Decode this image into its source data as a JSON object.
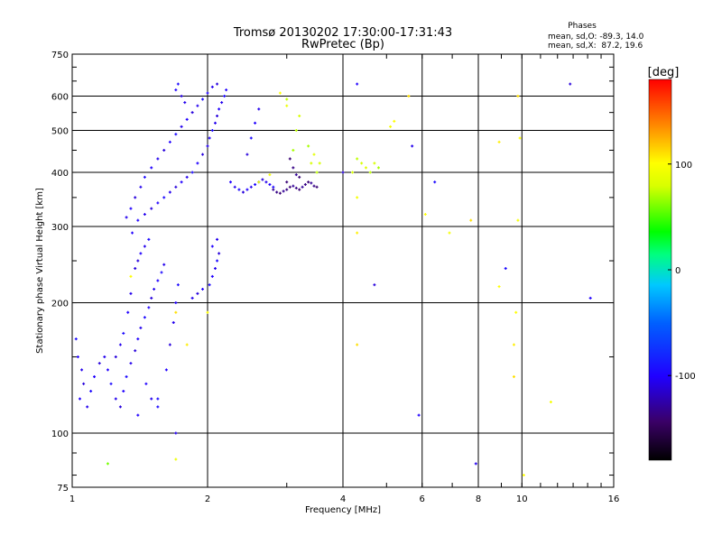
{
  "chart_data": {
    "type": "scatter",
    "title": "Tromsø 20130202 17:30:00-17:31:43",
    "subtitle": "RwPretec (Bp)",
    "xlabel": "Frequency [MHz]",
    "ylabel": "Stationary phase Virtual Height [km]",
    "x_scale": "log",
    "y_scale": "log",
    "xlim": [
      1,
      16
    ],
    "ylim": [
      75,
      750
    ],
    "x_ticks": [
      1,
      2,
      4,
      6,
      8,
      10,
      16
    ],
    "y_ticks": [
      75,
      100,
      200,
      300,
      400,
      500,
      600,
      750
    ],
    "x_gridlines": [
      2,
      4,
      6,
      8,
      10
    ],
    "y_gridlines": [
      100,
      200,
      300,
      400,
      500,
      600
    ],
    "grid": true,
    "phases_box": {
      "title": "Phases",
      "line_o": "mean, sd,O: -89.3, 14.0",
      "line_x": "mean, sd,X:  87.2, 19.6"
    },
    "colorbar": {
      "label": "[deg]",
      "range": [
        -180,
        180
      ],
      "ticks": [
        100,
        0,
        -100
      ],
      "tick_labels": [
        "100",
        "0",
        "-100"
      ]
    },
    "series": [
      {
        "points": [
          [
            1.02,
            165,
            -95
          ],
          [
            1.03,
            150,
            -100
          ],
          [
            1.05,
            140,
            -105
          ],
          [
            1.06,
            130,
            -110
          ],
          [
            1.04,
            120,
            -100
          ],
          [
            1.08,
            115,
            -105
          ],
          [
            1.1,
            125,
            -95
          ],
          [
            1.12,
            135,
            -100
          ],
          [
            1.15,
            145,
            -110
          ],
          [
            1.18,
            150,
            -105
          ],
          [
            1.2,
            140,
            -100
          ],
          [
            1.22,
            130,
            -95
          ],
          [
            1.25,
            120,
            -105
          ],
          [
            1.28,
            115,
            -110
          ],
          [
            1.3,
            125,
            -100
          ],
          [
            1.32,
            135,
            -95
          ],
          [
            1.35,
            145,
            -105
          ],
          [
            1.38,
            155,
            -110
          ],
          [
            1.4,
            165,
            -100
          ],
          [
            1.42,
            175,
            -105
          ],
          [
            1.45,
            185,
            -95
          ],
          [
            1.48,
            195,
            -100
          ],
          [
            1.5,
            205,
            -110
          ],
          [
            1.52,
            215,
            -105
          ],
          [
            1.55,
            225,
            -100
          ],
          [
            1.58,
            235,
            -95
          ],
          [
            1.6,
            245,
            -105
          ],
          [
            1.4,
            250,
            -110
          ],
          [
            1.42,
            260,
            -100
          ],
          [
            1.45,
            270,
            -105
          ],
          [
            1.48,
            280,
            -95
          ],
          [
            1.36,
            290,
            -100
          ],
          [
            1.38,
            240,
            -110
          ],
          [
            1.35,
            210,
            -105
          ],
          [
            1.33,
            190,
            -100
          ],
          [
            1.3,
            170,
            -95
          ],
          [
            1.28,
            160,
            -105
          ],
          [
            1.25,
            150,
            -110
          ],
          [
            1.46,
            130,
            -100
          ],
          [
            1.5,
            120,
            -105
          ],
          [
            1.55,
            115,
            -95
          ],
          [
            1.62,
            140,
            -100
          ],
          [
            1.65,
            160,
            -110
          ],
          [
            1.68,
            180,
            -105
          ],
          [
            1.7,
            200,
            -100
          ],
          [
            1.72,
            220,
            -95
          ],
          [
            1.4,
            310,
            -100
          ],
          [
            1.45,
            320,
            -105
          ],
          [
            1.5,
            330,
            -110
          ],
          [
            1.55,
            340,
            -100
          ],
          [
            1.6,
            350,
            -95
          ],
          [
            1.65,
            360,
            -105
          ],
          [
            1.7,
            370,
            -110
          ],
          [
            1.75,
            380,
            -100
          ],
          [
            1.8,
            390,
            -105
          ],
          [
            1.85,
            400,
            -95
          ],
          [
            1.9,
            420,
            -100
          ],
          [
            1.95,
            440,
            -110
          ],
          [
            2.0,
            460,
            -105
          ],
          [
            2.02,
            480,
            -100
          ],
          [
            2.05,
            500,
            -95
          ],
          [
            2.08,
            520,
            -105
          ],
          [
            2.1,
            540,
            -110
          ],
          [
            2.12,
            560,
            -100
          ],
          [
            2.15,
            580,
            -105
          ],
          [
            2.18,
            600,
            -95
          ],
          [
            2.2,
            620,
            -100
          ],
          [
            2.1,
            640,
            -110
          ],
          [
            2.05,
            630,
            -105
          ],
          [
            2.0,
            610,
            -100
          ],
          [
            1.95,
            590,
            -95
          ],
          [
            1.9,
            570,
            -105
          ],
          [
            1.85,
            550,
            -110
          ],
          [
            1.8,
            530,
            -100
          ],
          [
            1.75,
            510,
            -105
          ],
          [
            1.7,
            490,
            -95
          ],
          [
            1.65,
            470,
            -100
          ],
          [
            1.6,
            450,
            -110
          ],
          [
            1.55,
            430,
            -105
          ],
          [
            1.5,
            410,
            -100
          ],
          [
            1.45,
            390,
            -95
          ],
          [
            1.42,
            370,
            -105
          ],
          [
            1.38,
            350,
            -110
          ],
          [
            1.35,
            330,
            -100
          ],
          [
            1.32,
            315,
            -105
          ],
          [
            1.72,
            640,
            -95
          ],
          [
            1.7,
            620,
            -100
          ],
          [
            1.75,
            600,
            -110
          ],
          [
            1.78,
            580,
            -105
          ],
          [
            2.05,
            230,
            -100
          ],
          [
            2.08,
            240,
            -105
          ],
          [
            2.1,
            250,
            -95
          ],
          [
            2.12,
            260,
            -110
          ],
          [
            2.05,
            270,
            -100
          ],
          [
            2.1,
            280,
            -105
          ],
          [
            2.02,
            220,
            -95
          ],
          [
            1.95,
            215,
            -100
          ],
          [
            1.9,
            210,
            -110
          ],
          [
            1.85,
            205,
            -105
          ],
          [
            2.25,
            380,
            -100
          ],
          [
            2.3,
            370,
            -105
          ],
          [
            2.35,
            365,
            -95
          ],
          [
            2.4,
            360,
            -110
          ],
          [
            2.45,
            365,
            -100
          ],
          [
            2.5,
            370,
            -105
          ],
          [
            2.55,
            375,
            -95
          ],
          [
            2.6,
            380,
            -100
          ],
          [
            2.65,
            385,
            -110
          ],
          [
            2.7,
            380,
            -105
          ],
          [
            2.75,
            375,
            -100
          ],
          [
            2.8,
            370,
            -95
          ],
          [
            2.8,
            365,
            -130
          ],
          [
            2.85,
            360,
            -135
          ],
          [
            2.9,
            358,
            -140
          ],
          [
            2.95,
            362,
            -130
          ],
          [
            3.0,
            365,
            -135
          ],
          [
            3.05,
            370,
            -140
          ],
          [
            3.1,
            372,
            -130
          ],
          [
            3.15,
            368,
            -135
          ],
          [
            3.2,
            365,
            -140
          ],
          [
            3.25,
            370,
            -130
          ],
          [
            3.3,
            375,
            -135
          ],
          [
            3.35,
            380,
            -140
          ],
          [
            3.4,
            378,
            -130
          ],
          [
            3.45,
            372,
            -135
          ],
          [
            3.5,
            370,
            -140
          ],
          [
            2.55,
            520,
            -100
          ],
          [
            2.6,
            560,
            -105
          ],
          [
            2.5,
            480,
            -95
          ],
          [
            2.45,
            440,
            -110
          ],
          [
            3.05,
            430,
            -140
          ],
          [
            3.1,
            410,
            -135
          ],
          [
            3.15,
            395,
            -130
          ],
          [
            3.2,
            390,
            -140
          ],
          [
            4.3,
            640,
            -100
          ],
          [
            5.7,
            460,
            -105
          ],
          [
            6.4,
            380,
            -95
          ],
          [
            4.7,
            220,
            -110
          ],
          [
            5.9,
            110,
            -100
          ],
          [
            7.9,
            85,
            -105
          ],
          [
            9.2,
            240,
            -95
          ],
          [
            12.8,
            640,
            -110
          ],
          [
            14.2,
            205,
            -100
          ],
          [
            1.7,
            100,
            -105
          ],
          [
            1.55,
            120,
            -95
          ],
          [
            1.4,
            110,
            -100
          ],
          [
            3.0,
            380,
            -140
          ],
          [
            4.0,
            400,
            -110
          ]
        ]
      },
      {
        "points": [
          [
            3.1,
            450,
            70
          ],
          [
            3.15,
            500,
            75
          ],
          [
            3.2,
            540,
            80
          ],
          [
            3.0,
            590,
            75
          ],
          [
            3.4,
            420,
            80
          ],
          [
            3.45,
            440,
            85
          ],
          [
            3.5,
            400,
            75
          ],
          [
            3.55,
            420,
            80
          ],
          [
            3.35,
            460,
            70
          ],
          [
            4.4,
            420,
            80
          ],
          [
            4.5,
            410,
            85
          ],
          [
            4.6,
            400,
            75
          ],
          [
            4.7,
            420,
            80
          ],
          [
            4.8,
            410,
            70
          ],
          [
            4.3,
            430,
            75
          ],
          [
            4.2,
            400,
            80
          ],
          [
            2.6,
            380,
            90
          ],
          [
            2.75,
            395,
            95
          ],
          [
            2.9,
            610,
            100
          ],
          [
            3.0,
            570,
            90
          ],
          [
            5.1,
            510,
            95
          ],
          [
            5.2,
            525,
            100
          ],
          [
            5.6,
            600,
            110
          ],
          [
            6.1,
            320,
            100
          ],
          [
            6.9,
            290,
            95
          ],
          [
            7.7,
            310,
            110
          ],
          [
            8.9,
            470,
            105
          ],
          [
            9.9,
            480,
            100
          ],
          [
            9.8,
            600,
            110
          ],
          [
            9.8,
            310,
            95
          ],
          [
            9.7,
            190,
            100
          ],
          [
            9.6,
            160,
            105
          ],
          [
            9.6,
            135,
            110
          ],
          [
            10.1,
            80,
            100
          ],
          [
            11.6,
            118,
            95
          ],
          [
            8.9,
            218,
            100
          ],
          [
            4.3,
            290,
            105
          ],
          [
            4.3,
            160,
            110
          ],
          [
            4.3,
            350,
            95
          ],
          [
            1.35,
            230,
            100
          ],
          [
            1.7,
            190,
            110
          ],
          [
            1.8,
            160,
            105
          ],
          [
            2.0,
            190,
            100
          ],
          [
            1.2,
            85,
            60
          ],
          [
            1.7,
            87,
            90
          ]
        ]
      }
    ]
  }
}
